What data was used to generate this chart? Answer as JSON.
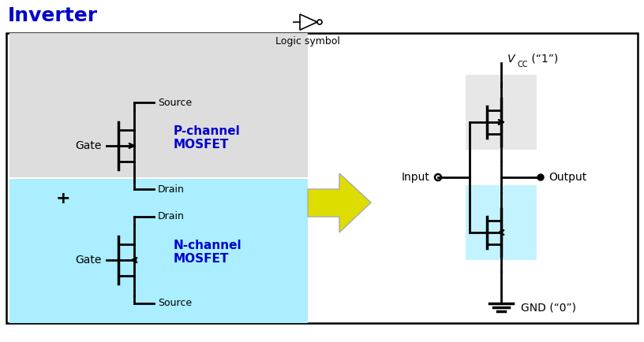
{
  "title": "Inverter",
  "title_color": "#0000CC",
  "logic_symbol_label": "Logic symbol",
  "bg_color": "#FFFFFF",
  "main_box_color": "#000000",
  "p_mosfet_bg": "#DDDDDD",
  "n_mosfet_bg": "#AAEEFF",
  "p_channel_label": "P-channel\nMOSFET",
  "n_channel_label": "N-channel\nMOSFET",
  "gate_label": "Gate",
  "source_label": "Source",
  "drain_label": "Drain",
  "vcc_label": "V",
  "vcc_sub": "CC",
  "vcc_val": " (“1”)",
  "gnd_label": "GND (“0”)",
  "input_label": "Input",
  "output_label": "Output",
  "plus_label": "+",
  "mosfet_color": "#000000",
  "arrow_color": "#CCCC00",
  "label_color": "#0000CC"
}
